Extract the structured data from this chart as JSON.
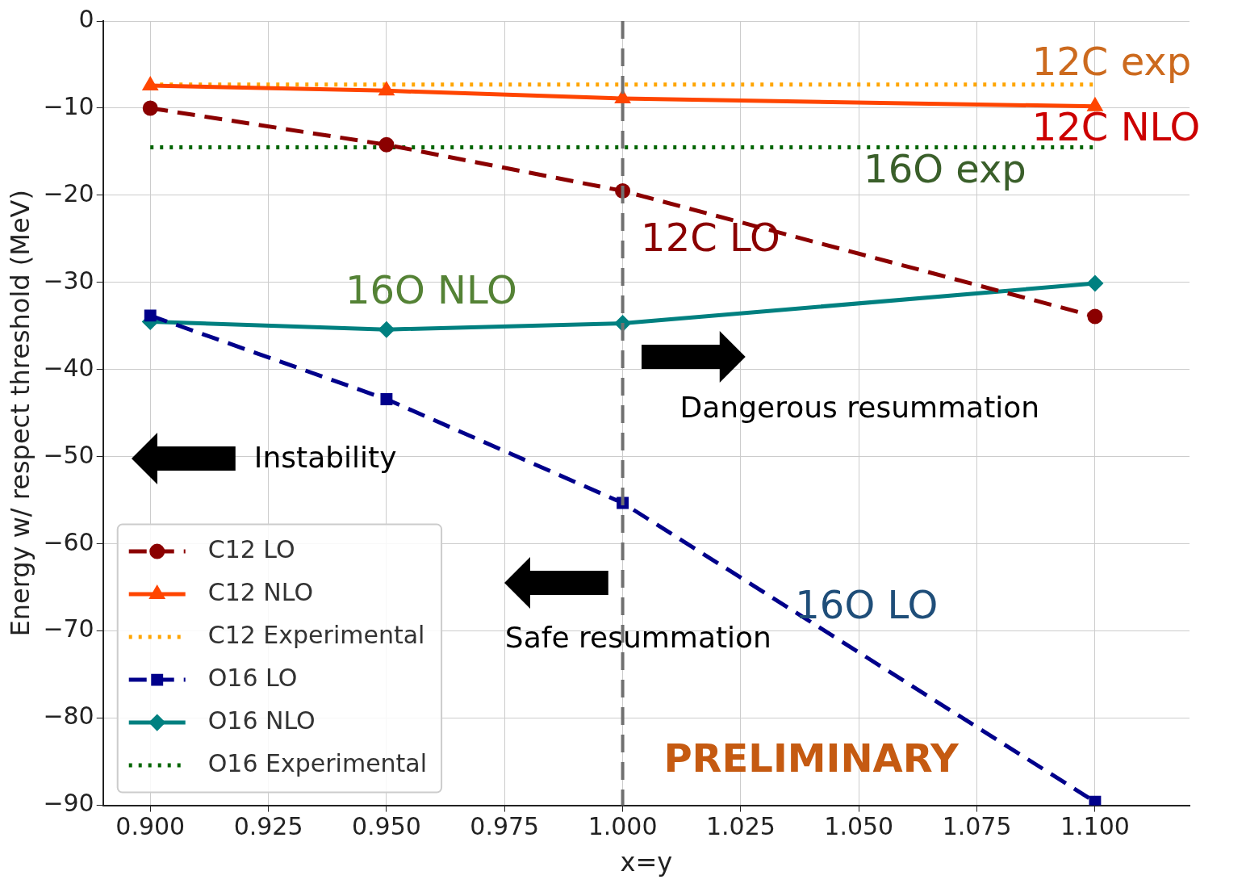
{
  "chart_data": {
    "type": "line",
    "xlabel": "x=y",
    "ylabel": "Energy w/ respect threshold (MeV)",
    "x": [
      0.9,
      0.95,
      1.0,
      1.1
    ],
    "series": [
      {
        "name": "C12 LO",
        "color": "#8b0000",
        "values": [
          -10,
          -14.2,
          -19.5,
          -33.9
        ],
        "line_style": "dashed",
        "marker": "circle"
      },
      {
        "name": "C12 NLO",
        "color": "#ff4500",
        "values": [
          -7.4,
          -8.0,
          -8.9,
          -9.8
        ],
        "line_style": "solid",
        "marker": "triangle"
      },
      {
        "name": "C12 Experimental",
        "color": "#ffa500",
        "values": [
          -7.3,
          -7.3,
          -7.3,
          -7.3
        ],
        "line_style": "dotted",
        "marker": "none"
      },
      {
        "name": "O16 LO",
        "color": "#00008b",
        "values": [
          -33.8,
          -43.4,
          -55.3,
          -89.6
        ],
        "line_style": "dashed",
        "marker": "square"
      },
      {
        "name": "O16 NLO",
        "color": "#008080",
        "values": [
          -34.5,
          -35.4,
          -34.7,
          -30.1
        ],
        "line_style": "solid",
        "marker": "diamond"
      },
      {
        "name": "O16 Experimental",
        "color": "#006400",
        "values": [
          -14.5,
          -14.5,
          -14.5,
          -14.5
        ],
        "line_style": "dotted",
        "marker": "none"
      }
    ],
    "xlim": [
      0.89,
      1.12
    ],
    "ylim": [
      -90,
      0
    ],
    "xticks": [
      {
        "value": 0.9,
        "label": "0.900"
      },
      {
        "value": 0.925,
        "label": "0.925"
      },
      {
        "value": 0.95,
        "label": "0.950"
      },
      {
        "value": 0.975,
        "label": "0.975"
      },
      {
        "value": 1.0,
        "label": "1.000"
      },
      {
        "value": 1.025,
        "label": "1.025"
      },
      {
        "value": 1.05,
        "label": "1.050"
      },
      {
        "value": 1.075,
        "label": "1.075"
      },
      {
        "value": 1.1,
        "label": "1.100"
      }
    ],
    "yticks": [
      {
        "value": -90,
        "label": "−90"
      },
      {
        "value": -80,
        "label": "−80"
      },
      {
        "value": -70,
        "label": "−70"
      },
      {
        "value": -60,
        "label": "−60"
      },
      {
        "value": -50,
        "label": "−50"
      },
      {
        "value": -40,
        "label": "−40"
      },
      {
        "value": -30,
        "label": "−30"
      },
      {
        "value": -20,
        "label": "−20"
      },
      {
        "value": -10,
        "label": "−10"
      },
      0
    ],
    "ref_lines": [
      {
        "axis": "x",
        "value": 1.0,
        "label": null,
        "color": "#707070",
        "line_style": "dashed"
      }
    ],
    "annotations": [
      "12C exp",
      "12C NLO",
      "16O exp",
      "12C LO",
      "16O NLO",
      "16O LO",
      "Instability",
      "Dangerous resummation",
      "Safe resummation",
      "PRELIMINARY"
    ],
    "grid": true,
    "legend": "bottom left"
  }
}
